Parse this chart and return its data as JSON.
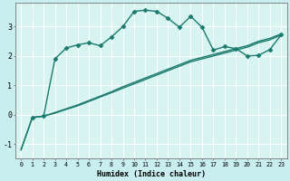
{
  "xlabel": "Humidex (Indice chaleur)",
  "xlim": [
    -0.5,
    23.5
  ],
  "ylim": [
    -1.5,
    3.8
  ],
  "yticks": [
    -1,
    0,
    1,
    2,
    3
  ],
  "xticks": [
    0,
    1,
    2,
    3,
    4,
    5,
    6,
    7,
    8,
    9,
    10,
    11,
    12,
    13,
    14,
    15,
    16,
    17,
    18,
    19,
    20,
    21,
    22,
    23
  ],
  "bg_color": "#c8eef0",
  "plot_bg_color": "#d8f4f0",
  "grid_color": "#ffffff",
  "line_color": "#1a7a6e",
  "series1_x": [
    0,
    1,
    2,
    3,
    4,
    5,
    6,
    7,
    8,
    9,
    10,
    11,
    12,
    13,
    14,
    15,
    16,
    17,
    18,
    19,
    20,
    21,
    22,
    23
  ],
  "series1_y": [
    -1.2,
    -0.1,
    -0.05,
    0.05,
    0.18,
    0.3,
    0.45,
    0.6,
    0.75,
    0.9,
    1.05,
    1.2,
    1.35,
    1.5,
    1.65,
    1.8,
    1.9,
    2.0,
    2.1,
    2.2,
    2.3,
    2.45,
    2.55,
    2.72
  ],
  "series2_x": [
    0,
    1,
    2,
    3,
    4,
    5,
    6,
    7,
    8,
    9,
    10,
    11,
    12,
    13,
    14,
    15,
    16,
    17,
    18,
    19,
    20,
    21,
    22,
    23
  ],
  "series2_y": [
    -1.2,
    -0.1,
    -0.05,
    0.07,
    0.2,
    0.33,
    0.48,
    0.63,
    0.78,
    0.95,
    1.1,
    1.25,
    1.4,
    1.55,
    1.7,
    1.85,
    1.95,
    2.05,
    2.15,
    2.25,
    2.35,
    2.5,
    2.6,
    2.75
  ],
  "series3_x": [
    1,
    2,
    3,
    4,
    5,
    6,
    7,
    8,
    9,
    10,
    11,
    12,
    13,
    14,
    15,
    16,
    17,
    18,
    19,
    20,
    21,
    22,
    23
  ],
  "series3_y": [
    -0.1,
    -0.05,
    1.9,
    2.27,
    2.38,
    2.45,
    2.35,
    2.65,
    3.0,
    3.52,
    3.56,
    3.52,
    3.28,
    2.98,
    3.35,
    2.98,
    2.2,
    2.32,
    2.25,
    2.0,
    2.02,
    2.22,
    2.72
  ]
}
